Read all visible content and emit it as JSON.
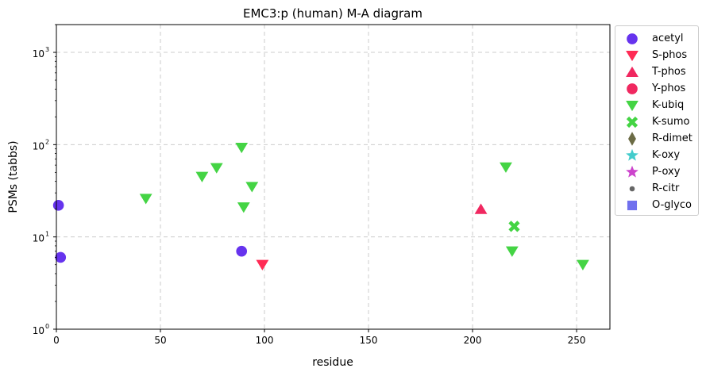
{
  "chart_data": {
    "type": "scatter",
    "title": "EMC3:p (human) M-A diagram",
    "xlabel": "residue",
    "ylabel": "PSMs (tabbs)",
    "xlim": [
      0,
      266
    ],
    "ylim": [
      1,
      2000
    ],
    "yscale": "log",
    "x_ticks": [
      0,
      50,
      100,
      150,
      200,
      250
    ],
    "x_tick_labels": [
      "0",
      "50",
      "100",
      "150",
      "200",
      "250"
    ],
    "y_ticks": [
      1,
      10,
      100,
      1000
    ],
    "y_tick_labels": [
      "10",
      "10",
      "10",
      "10"
    ],
    "y_tick_exponents": [
      "0",
      "1",
      "2",
      "3"
    ],
    "grid": true,
    "legend_position": "outside-right",
    "series": [
      {
        "name": "acetyl",
        "marker": "circle",
        "color": "#6633ee",
        "points": [
          [
            1,
            22
          ],
          [
            2,
            6
          ],
          [
            89,
            7
          ]
        ]
      },
      {
        "name": "S-phos",
        "marker": "triangle-down",
        "color": "#ff2b55",
        "points": [
          [
            99,
            5
          ]
        ]
      },
      {
        "name": "T-phos",
        "marker": "triangle-up",
        "color": "#f02860",
        "points": [
          [
            204,
            20
          ]
        ]
      },
      {
        "name": "Y-phos",
        "marker": "circle",
        "color": "#f02860",
        "points": []
      },
      {
        "name": "K-ubiq",
        "marker": "triangle-down",
        "color": "#44d444",
        "points": [
          [
            43,
            26
          ],
          [
            70,
            45
          ],
          [
            77,
            56
          ],
          [
            89,
            93
          ],
          [
            90,
            21
          ],
          [
            94,
            35
          ],
          [
            216,
            57
          ],
          [
            219,
            7
          ],
          [
            253,
            5
          ]
        ]
      },
      {
        "name": "K-sumo",
        "marker": "x",
        "color": "#44d444",
        "points": [
          [
            220,
            13
          ]
        ]
      },
      {
        "name": "R-dimet",
        "marker": "diamond",
        "color": "#6b6b45",
        "points": []
      },
      {
        "name": "K-oxy",
        "marker": "star",
        "color": "#44cccc",
        "points": []
      },
      {
        "name": "P-oxy",
        "marker": "star",
        "color": "#cc44cc",
        "points": []
      },
      {
        "name": "R-citr",
        "marker": "point",
        "color": "#666666",
        "points": []
      },
      {
        "name": "O-glyco",
        "marker": "square",
        "color": "#7070ee",
        "points": []
      }
    ]
  }
}
